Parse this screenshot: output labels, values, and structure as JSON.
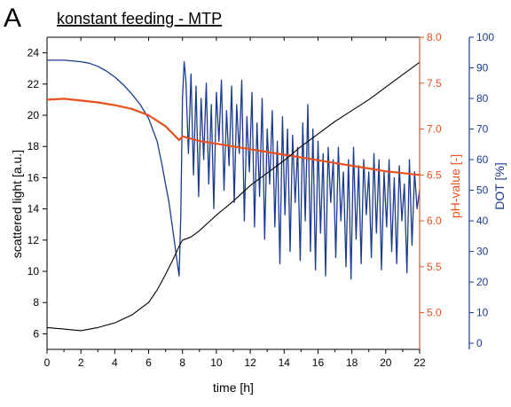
{
  "panel_letter": "A",
  "chart_data": {
    "type": "line",
    "title": "konstant feeding - MTP",
    "xlabel": "time   [h]",
    "xlim": [
      0,
      22
    ],
    "xticks": [
      0,
      2,
      4,
      6,
      8,
      10,
      12,
      14,
      16,
      18,
      20,
      22
    ],
    "axes": {
      "scattered_light": {
        "label": "scattered light   [a.u.]",
        "ylim": [
          5,
          25
        ],
        "ticks": [
          6,
          8,
          10,
          12,
          14,
          16,
          18,
          20,
          22,
          24
        ],
        "color": "#000000"
      },
      "ph": {
        "label": "pH-value   [-]",
        "ylim": [
          4.6,
          8.0
        ],
        "ticks": [
          5.0,
          5.5,
          6.0,
          6.5,
          7.0,
          7.5,
          8.0
        ],
        "tick_labels": [
          "5.0",
          "5.5",
          "6.0",
          "6.5",
          "7.0",
          "7.5",
          "8.0"
        ],
        "color": "#e8501e"
      },
      "dot": {
        "label": "DOT   [%]",
        "ylim": [
          -2,
          100
        ],
        "ticks": [
          0,
          10,
          20,
          30,
          40,
          50,
          60,
          70,
          80,
          90,
          100
        ],
        "color": "#1a3a8f"
      }
    },
    "series": [
      {
        "key": "scattered_light",
        "axis": "scattered_light",
        "color": "#000000",
        "x": [
          0,
          1,
          2,
          3,
          4,
          5,
          6,
          6.5,
          7,
          7.5,
          7.8,
          8,
          8.5,
          9,
          10,
          11,
          12,
          13,
          14,
          15,
          16,
          17,
          18,
          19,
          20,
          21,
          21.5,
          22
        ],
        "y": [
          6.4,
          6.3,
          6.2,
          6.4,
          6.7,
          7.2,
          8.0,
          8.8,
          9.8,
          10.9,
          11.6,
          12.0,
          12.2,
          12.6,
          13.6,
          14.5,
          15.5,
          16.3,
          17.1,
          18.0,
          18.8,
          19.6,
          20.3,
          21.0,
          21.8,
          22.6,
          23.0,
          23.4
        ]
      },
      {
        "key": "ph",
        "axis": "ph",
        "color": "#e8501e",
        "x": [
          0,
          1,
          2,
          3,
          4,
          5,
          6,
          7,
          7.8,
          8,
          9,
          10,
          11,
          12,
          13,
          14,
          15,
          16,
          17,
          18,
          19,
          20,
          21,
          22
        ],
        "y": [
          7.32,
          7.33,
          7.31,
          7.29,
          7.26,
          7.22,
          7.15,
          7.03,
          6.88,
          6.92,
          6.87,
          6.84,
          6.81,
          6.78,
          6.75,
          6.72,
          6.69,
          6.66,
          6.63,
          6.6,
          6.57,
          6.54,
          6.52,
          6.5
        ]
      },
      {
        "key": "dot",
        "axis": "dot",
        "color": "#1a3a8f",
        "x": [
          0,
          1,
          2,
          2.5,
          3,
          3.5,
          4,
          4.5,
          5,
          5.5,
          6,
          6.5,
          6.8,
          7.0,
          7.2,
          7.4,
          7.6,
          7.8,
          7.9,
          8.0,
          8.1,
          8.2,
          8.35,
          8.5,
          8.65,
          8.8,
          8.95,
          9.1,
          9.25,
          9.4,
          9.55,
          9.7,
          9.85,
          10.0,
          10.15,
          10.3,
          10.45,
          10.6,
          10.75,
          10.9,
          11.05,
          11.2,
          11.35,
          11.5,
          11.65,
          11.8,
          11.95,
          12.1,
          12.25,
          12.4,
          12.55,
          12.7,
          12.85,
          13.0,
          13.15,
          13.3,
          13.45,
          13.6,
          13.75,
          13.9,
          14.05,
          14.2,
          14.35,
          14.5,
          14.65,
          14.8,
          14.95,
          15.1,
          15.25,
          15.4,
          15.55,
          15.7,
          15.85,
          16.0,
          16.15,
          16.3,
          16.45,
          16.6,
          16.75,
          16.9,
          17.05,
          17.2,
          17.35,
          17.5,
          17.65,
          17.8,
          17.95,
          18.1,
          18.25,
          18.4,
          18.55,
          18.7,
          18.85,
          19.0,
          19.15,
          19.3,
          19.45,
          19.6,
          19.75,
          19.9,
          20.05,
          20.2,
          20.35,
          20.5,
          20.65,
          20.8,
          20.95,
          21.1,
          21.25,
          21.4,
          21.55,
          21.7,
          21.85,
          22.0
        ],
        "y": [
          92.5,
          92.5,
          92,
          91.5,
          90.5,
          89,
          87,
          84.5,
          81.5,
          78,
          73.5,
          66,
          58,
          52,
          46,
          38,
          30,
          22,
          42,
          80,
          92,
          86,
          62,
          88,
          55,
          84,
          48,
          80,
          60,
          85,
          52,
          78,
          44,
          82,
          66,
          86,
          50,
          76,
          58,
          84,
          46,
          78,
          62,
          86,
          40,
          74,
          56,
          82,
          38,
          72,
          48,
          80,
          34,
          70,
          52,
          76,
          38,
          66,
          26,
          74,
          42,
          70,
          30,
          68,
          46,
          64,
          27,
          72,
          40,
          78,
          30,
          70,
          24,
          66,
          36,
          62,
          22,
          64,
          46,
          60,
          28,
          64,
          40,
          56,
          25,
          60,
          21,
          64,
          34,
          58,
          26,
          60,
          42,
          56,
          28,
          62,
          36,
          60,
          24,
          56,
          38,
          60,
          30,
          54,
          26,
          58,
          40,
          52,
          23,
          60,
          32,
          56,
          44,
          50
        ]
      }
    ]
  }
}
